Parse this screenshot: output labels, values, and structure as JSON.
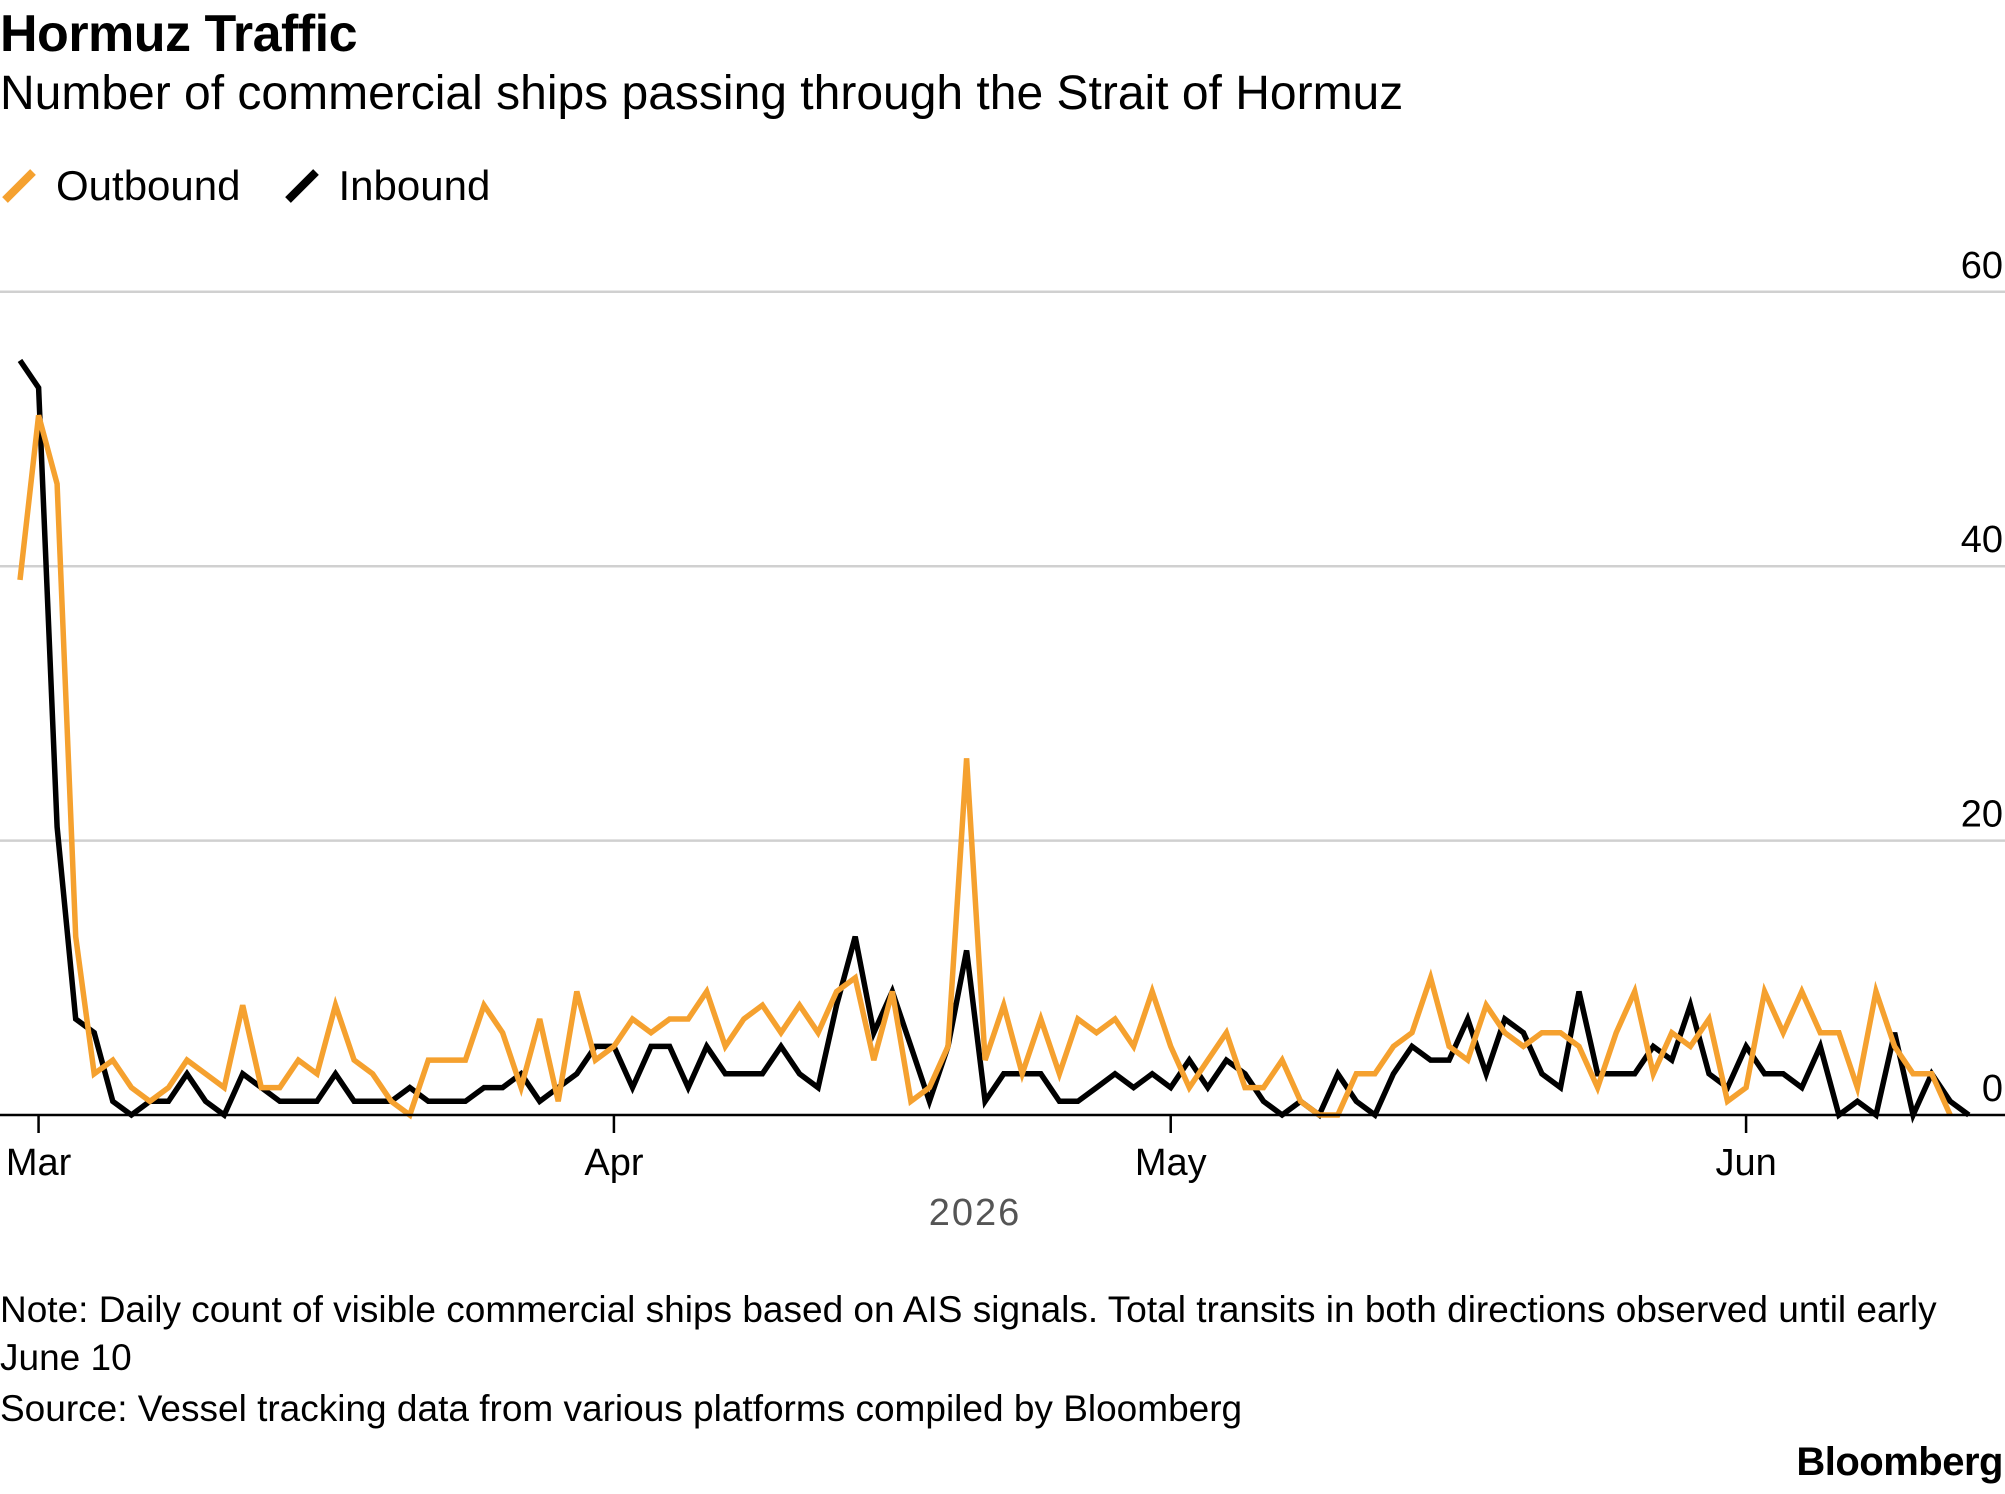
{
  "header": {
    "title": "Hormuz Traffic",
    "subtitle": "Number of commercial ships passing through the Strait of Hormuz"
  },
  "colors": {
    "outbound": "#F5A12F",
    "inbound": "#000000",
    "gridline": "#d0d0d0",
    "axis": "#000000"
  },
  "legend": {
    "items": [
      {
        "label": "Outbound",
        "icon": "orange-slash-icon"
      },
      {
        "label": "Inbound",
        "icon": "black-slash-icon"
      }
    ]
  },
  "chart_data": {
    "type": "line",
    "title": "Hormuz Traffic",
    "subtitle": "Number of commercial ships passing through the Strait of Hormuz",
    "xlabel": "2026",
    "ylabel": "",
    "x_start": "2026-02-28",
    "x_ticks": [
      "Mar",
      "Apr",
      "May",
      "Jun"
    ],
    "x_tick_dates": [
      "2026-03-01",
      "2026-04-01",
      "2026-05-01",
      "2026-06-01"
    ],
    "y_ticks": [
      0,
      20,
      40,
      60
    ],
    "ylim": [
      0,
      60
    ],
    "grid": true,
    "legend_position": "top-left",
    "y_axis_position": "right",
    "series": [
      {
        "name": "Outbound",
        "values": [
          39,
          51,
          46,
          13,
          3,
          4,
          2,
          1,
          2,
          4,
          3,
          2,
          8,
          2,
          2,
          4,
          3,
          8,
          4,
          3,
          1,
          0,
          4,
          4,
          4,
          8,
          6,
          2,
          7,
          1,
          9,
          4,
          5,
          7,
          6,
          7,
          7,
          9,
          5,
          7,
          8,
          6,
          8,
          6,
          9,
          10,
          4,
          9,
          1,
          2,
          5,
          26,
          4,
          8,
          3,
          7,
          3,
          7,
          6,
          7,
          5,
          9,
          5,
          2,
          4,
          6,
          2,
          2,
          4,
          1,
          0,
          0,
          3,
          3,
          5,
          6,
          10,
          5,
          4,
          8,
          6,
          5,
          6,
          6,
          5,
          2,
          6,
          9,
          3,
          6,
          5,
          7,
          1,
          2,
          9,
          6,
          9,
          6,
          6,
          2,
          9,
          5,
          3,
          3,
          0
        ],
        "dates": "daily from 2026-02-28"
      },
      {
        "name": "Inbound",
        "values": [
          55,
          53,
          21,
          7,
          6,
          1,
          0,
          1,
          1,
          3,
          1,
          0,
          3,
          2,
          1,
          1,
          1,
          3,
          1,
          1,
          1,
          2,
          1,
          1,
          1,
          2,
          2,
          3,
          1,
          2,
          3,
          5,
          5,
          2,
          5,
          5,
          2,
          5,
          3,
          3,
          3,
          5,
          3,
          2,
          8,
          13,
          6,
          9,
          5,
          1,
          5,
          12,
          1,
          3,
          3,
          3,
          1,
          1,
          2,
          3,
          2,
          3,
          2,
          4,
          2,
          4,
          3,
          1,
          0,
          1,
          0,
          3,
          1,
          0,
          3,
          5,
          4,
          4,
          7,
          3,
          7,
          6,
          3,
          2,
          9,
          3,
          3,
          3,
          5,
          4,
          8,
          3,
          2,
          5,
          3,
          3,
          2,
          5,
          0,
          1,
          0,
          6,
          0,
          3,
          1,
          0
        ],
        "dates": "daily from 2026-02-28"
      }
    ]
  },
  "footer": {
    "note": "Note: Daily count of visible commercial ships based on AIS signals. Total transits in both directions observed until early June 10",
    "source": "Source: Vessel tracking data from various platforms compiled by Bloomberg",
    "brand": "Bloomberg"
  }
}
